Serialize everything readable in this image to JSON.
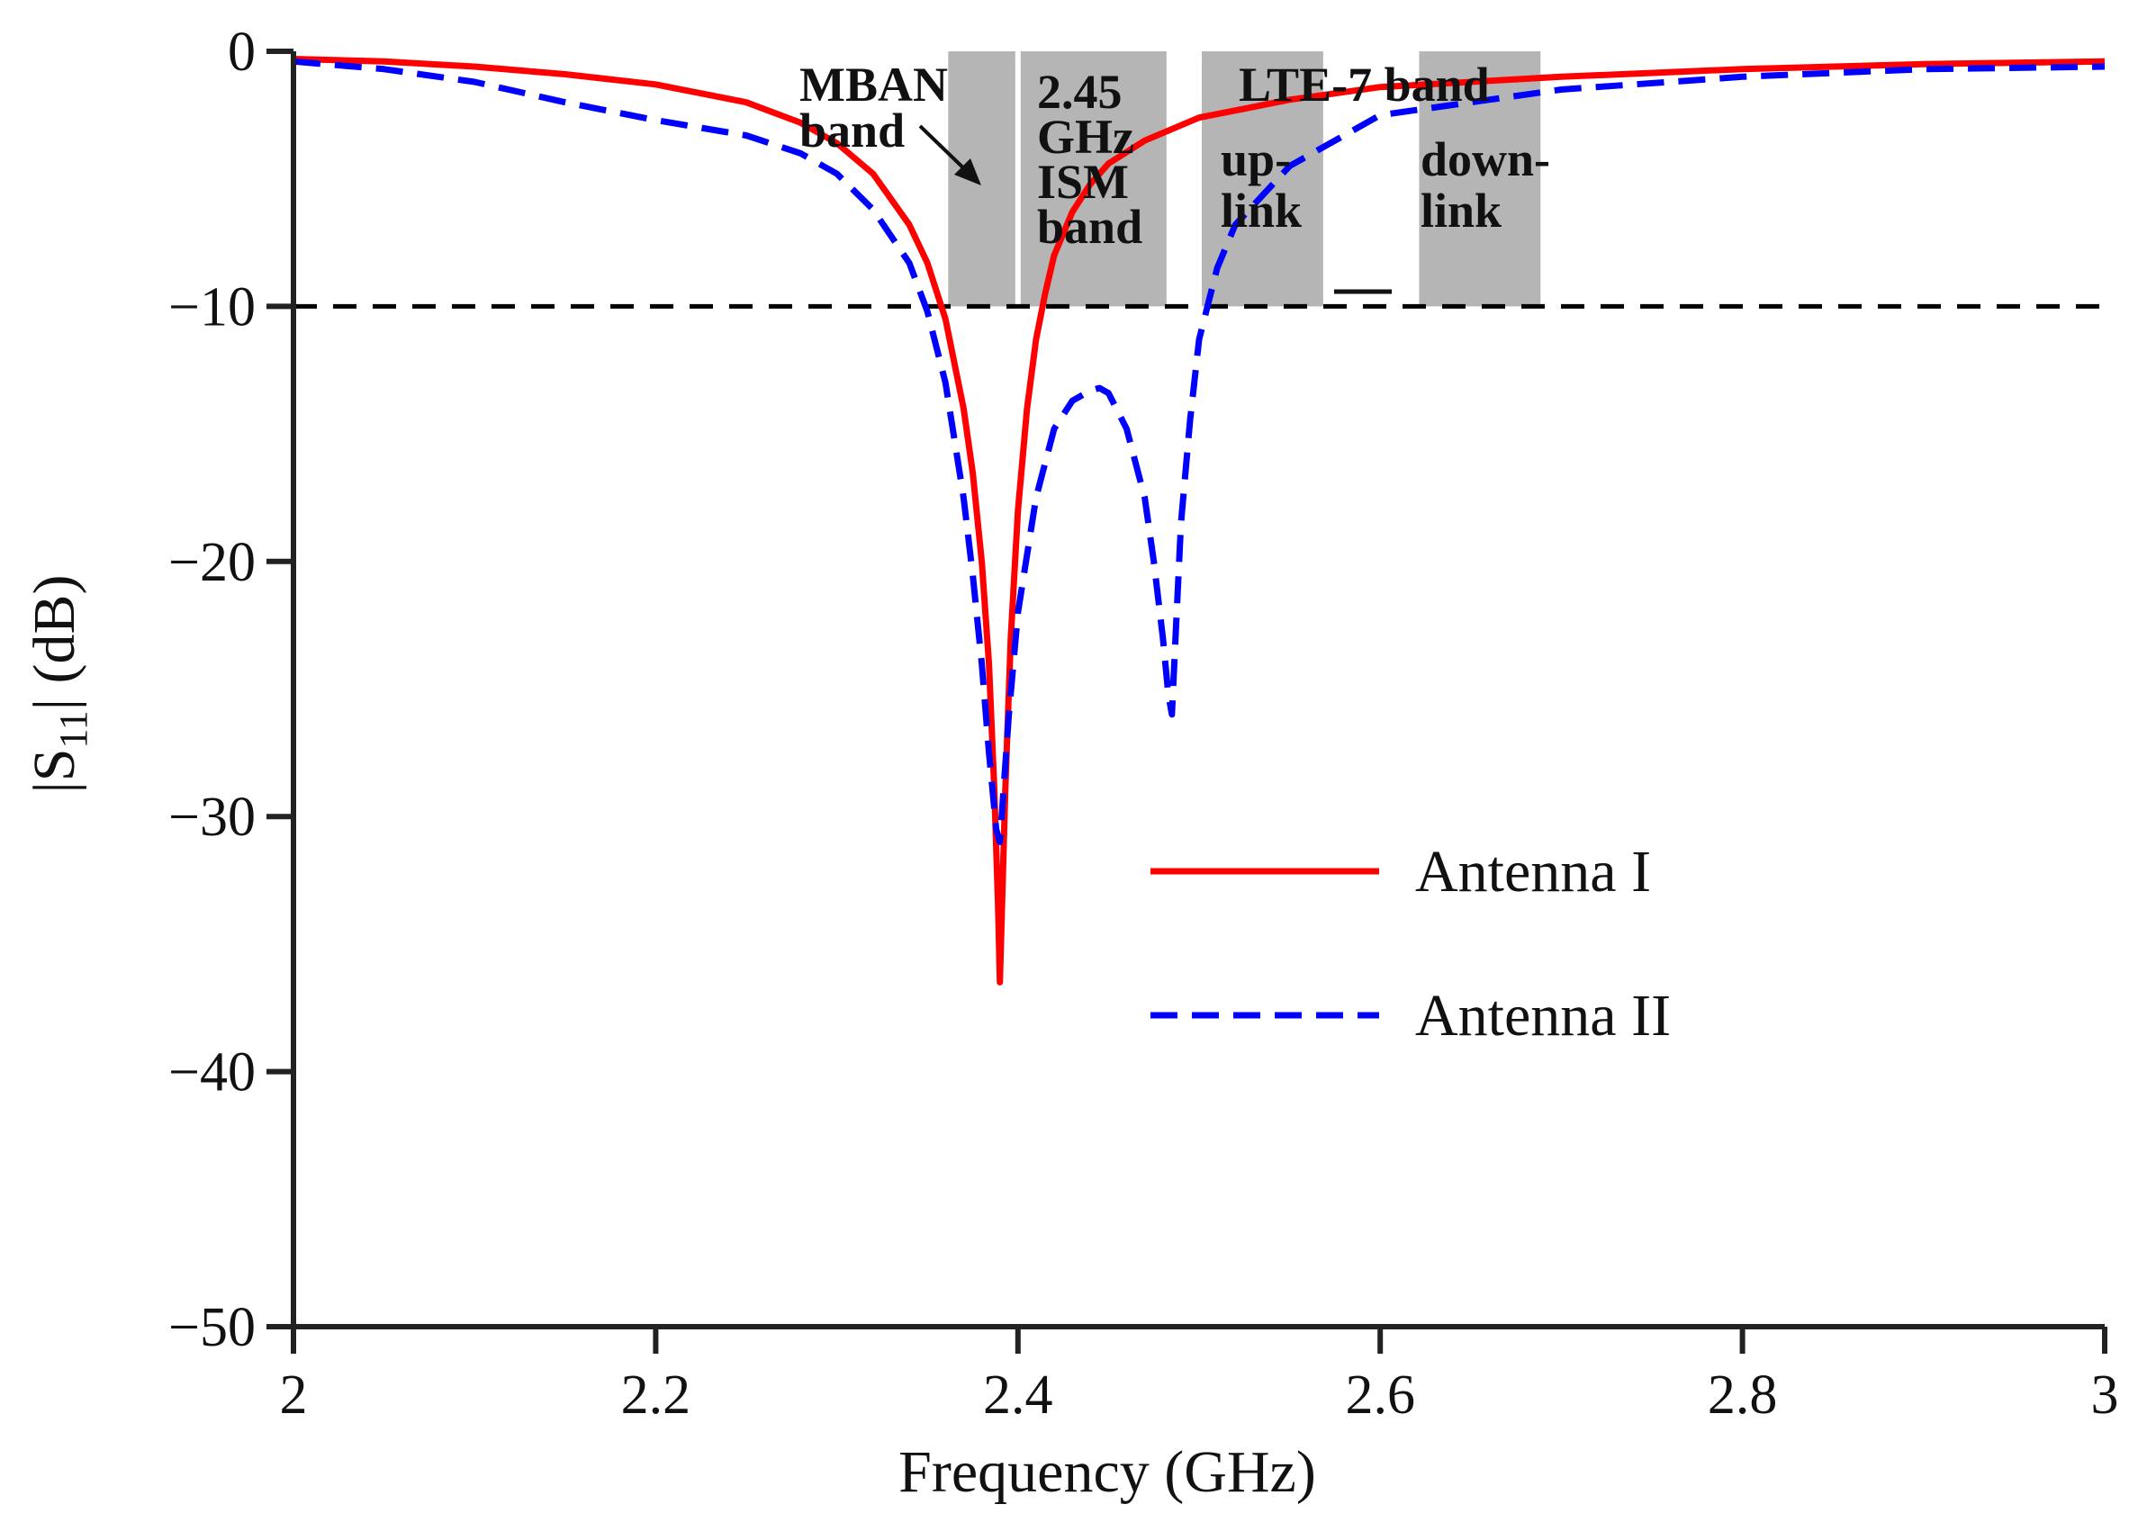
{
  "chart_data": {
    "type": "line",
    "xlabel": "Frequency (GHz)",
    "ylabel": {
      "prefix": "|S",
      "subscript": "11",
      "suffix": "| (dB)"
    },
    "xlim": [
      2,
      3
    ],
    "ylim": [
      -50,
      0
    ],
    "x_ticks": [
      2,
      2.2,
      2.4,
      2.6,
      2.8,
      3
    ],
    "x_tick_labels": [
      "2",
      "2.2",
      "2.4",
      "2.6",
      "2.8",
      "3"
    ],
    "y_ticks": [
      0,
      -10,
      -20,
      -30,
      -40,
      -50
    ],
    "y_tick_labels": [
      "0",
      "−10",
      "−20",
      "−30",
      "−40",
      "−50"
    ],
    "threshold": {
      "value": -10,
      "style": "dashed",
      "color": "#000000"
    },
    "bands": [
      {
        "name": "MBAN band",
        "x0": 2.36,
        "x1": 2.4,
        "y0": -10,
        "y1": 0
      },
      {
        "name": "2.45 GHz ISM band",
        "x0": 2.4,
        "x1": 2.4835,
        "y0": -10,
        "y1": 0
      },
      {
        "name": "LTE-7 band up-link",
        "x0": 2.5,
        "x1": 2.57,
        "y0": -10,
        "y1": 0
      },
      {
        "name": "LTE-7 band down-link",
        "x0": 2.62,
        "x1": 2.69,
        "y0": -10,
        "y1": 0
      }
    ],
    "annotations": {
      "mban_line1": "MBAN",
      "mban_line2": "band",
      "ism_line1": "2.45",
      "ism_line2": "GHz",
      "ism_line3": "ISM",
      "ism_line4": "band",
      "lte_title": "LTE-7 band",
      "uplink_line1": "up-",
      "uplink_line2": "link",
      "downlink_line1": "down-",
      "downlink_line2": "link"
    },
    "series": [
      {
        "name": "Antenna I",
        "color": "#ff0000",
        "style": "solid",
        "x": [
          2.0,
          2.05,
          2.1,
          2.15,
          2.2,
          2.25,
          2.28,
          2.3,
          2.32,
          2.34,
          2.35,
          2.36,
          2.37,
          2.375,
          2.38,
          2.384,
          2.387,
          2.389,
          2.39,
          2.391,
          2.393,
          2.396,
          2.4,
          2.405,
          2.41,
          2.415,
          2.42,
          2.43,
          2.44,
          2.45,
          2.47,
          2.5,
          2.55,
          2.6,
          2.7,
          2.8,
          2.9,
          3.0
        ],
        "y": [
          -0.3,
          -0.4,
          -0.6,
          -0.9,
          -1.3,
          -2.0,
          -2.8,
          -3.6,
          -4.8,
          -6.8,
          -8.3,
          -10.5,
          -14.0,
          -16.5,
          -20.0,
          -24.0,
          -29.0,
          -33.5,
          -36.5,
          -34.0,
          -29.0,
          -23.0,
          -18.0,
          -14.0,
          -11.3,
          -9.5,
          -8.0,
          -6.3,
          -5.2,
          -4.4,
          -3.5,
          -2.6,
          -1.9,
          -1.4,
          -1.0,
          -0.7,
          -0.5,
          -0.4
        ]
      },
      {
        "name": "Antenna II",
        "color": "#0000ff",
        "style": "dashed",
        "x": [
          2.0,
          2.05,
          2.1,
          2.15,
          2.2,
          2.25,
          2.28,
          2.3,
          2.32,
          2.34,
          2.35,
          2.36,
          2.37,
          2.375,
          2.38,
          2.384,
          2.388,
          2.39,
          2.392,
          2.395,
          2.4,
          2.41,
          2.42,
          2.43,
          2.44,
          2.445,
          2.45,
          2.46,
          2.47,
          2.475,
          2.48,
          2.483,
          2.485,
          2.487,
          2.49,
          2.495,
          2.5,
          2.51,
          2.52,
          2.55,
          2.6,
          2.7,
          2.8,
          2.9,
          3.0
        ],
        "y": [
          -0.4,
          -0.7,
          -1.2,
          -2.0,
          -2.7,
          -3.3,
          -4.0,
          -4.8,
          -6.2,
          -8.3,
          -10.2,
          -13.0,
          -17.5,
          -20.5,
          -24.0,
          -27.5,
          -30.5,
          -31.0,
          -29.0,
          -26.0,
          -22.0,
          -17.5,
          -14.8,
          -13.7,
          -13.3,
          -13.2,
          -13.4,
          -14.8,
          -17.5,
          -20.0,
          -23.0,
          -25.2,
          -26.0,
          -23.0,
          -18.5,
          -14.5,
          -11.3,
          -8.5,
          -6.8,
          -4.5,
          -2.5,
          -1.5,
          -1.0,
          -0.7,
          -0.6
        ]
      }
    ]
  }
}
